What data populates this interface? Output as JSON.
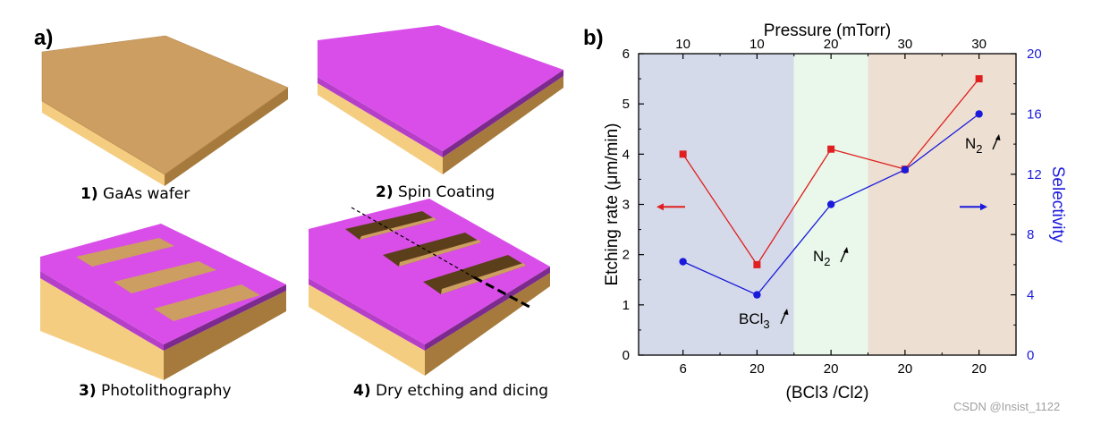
{
  "panel_a": {
    "label": "a)",
    "steps": [
      {
        "num": "1)",
        "text": "GaAs wafer"
      },
      {
        "num": "2)",
        "text": "Spin Coating"
      },
      {
        "num": "3)",
        "text": "Photolithography"
      },
      {
        "num": "4)",
        "text": "Dry etching and dicing"
      }
    ]
  },
  "panel_b": {
    "label": "b)"
  },
  "colors": {
    "wafer_top": "#cd9e61",
    "wafer_side": "#f5cd80",
    "resist": "#d94ee8",
    "resist_edge": "#7d2a8e",
    "trench": "#5b3e1a",
    "red": "#e02020",
    "blue": "#1a1adc",
    "region1": "#d4dae9",
    "region2": "#e9f8ea",
    "region3": "#ede0d2"
  },
  "chart_data": {
    "type": "line",
    "x_positions": [
      1,
      2,
      3,
      4,
      5
    ],
    "xlim": [
      0.4,
      5.5
    ],
    "bottom_tick_labels": [
      "6",
      "20",
      "20",
      "20",
      "20"
    ],
    "top_tick_labels": [
      "10",
      "10",
      "20",
      "30",
      "30"
    ],
    "xlabel": "(BCl3 /Cl2)",
    "top_xlabel": "Pressure (mTorr)",
    "ylabel": "Etching rate (μm/min)",
    "ylim": [
      0,
      6
    ],
    "yticks": [
      "0",
      "1",
      "2",
      "3",
      "4",
      "5",
      "6"
    ],
    "y2label": "Selectivity",
    "y2lim": [
      0,
      20
    ],
    "y2ticks": [
      "0",
      "4",
      "8",
      "12",
      "16",
      "20"
    ],
    "series": [
      {
        "name": "Etching rate",
        "axis": "left",
        "marker": "square",
        "values": [
          4.0,
          1.8,
          4.1,
          3.7,
          5.5
        ]
      },
      {
        "name": "Selectivity",
        "axis": "right",
        "marker": "circle",
        "values": [
          6.2,
          4.0,
          10.0,
          12.3,
          16.0
        ]
      }
    ],
    "regions": [
      {
        "from": 0.4,
        "to": 2.5
      },
      {
        "from": 2.5,
        "to": 3.5
      },
      {
        "from": 3.5,
        "to": 5.5
      }
    ],
    "annotations": {
      "bcl3": "BCl",
      "bcl3_sub": "3",
      "n2_mid": "N",
      "n2_mid_sub": "2",
      "n2_top": "N",
      "n2_top_sub": "2"
    }
  },
  "watermark": "CSDN @Insist_1122"
}
